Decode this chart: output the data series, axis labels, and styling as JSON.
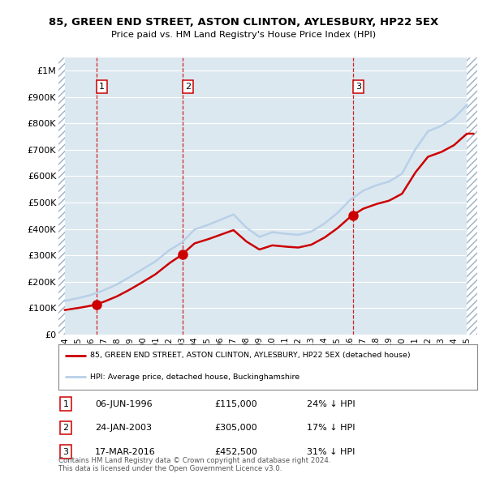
{
  "title1": "85, GREEN END STREET, ASTON CLINTON, AYLESBURY, HP22 5EX",
  "title2": "Price paid vs. HM Land Registry's House Price Index (HPI)",
  "ylim": [
    0,
    1050000
  ],
  "yticks": [
    0,
    100000,
    200000,
    300000,
    400000,
    500000,
    600000,
    700000,
    800000,
    900000,
    1000000
  ],
  "ytick_labels": [
    "£0",
    "£100K",
    "£200K",
    "£300K",
    "£400K",
    "£500K",
    "£600K",
    "£700K",
    "£800K",
    "£900K",
    "£1M"
  ],
  "xlim_start": 1993.5,
  "xlim_end": 2025.8,
  "hpi_color": "#b8d0e8",
  "price_color": "#cc0000",
  "sale_points": [
    {
      "year": 1996.44,
      "price": 115000,
      "label": "1"
    },
    {
      "year": 2003.07,
      "price": 305000,
      "label": "2"
    },
    {
      "year": 2016.21,
      "price": 452500,
      "label": "3"
    }
  ],
  "vline_color": "#cc0000",
  "legend_line1": "85, GREEN END STREET, ASTON CLINTON, AYLESBURY, HP22 5EX (detached house)",
  "legend_line2": "HPI: Average price, detached house, Buckinghamshire",
  "table_rows": [
    {
      "num": "1",
      "date": "06-JUN-1996",
      "price": "£115,000",
      "hpi": "24% ↓ HPI"
    },
    {
      "num": "2",
      "date": "24-JAN-2003",
      "price": "£305,000",
      "hpi": "17% ↓ HPI"
    },
    {
      "num": "3",
      "date": "17-MAR-2016",
      "price": "£452,500",
      "hpi": "31% ↓ HPI"
    }
  ],
  "footer": "Contains HM Land Registry data © Crown copyright and database right 2024.\nThis data is licensed under the Open Government Licence v3.0.",
  "bg_plot_color": "#dce8f0",
  "hpi_years": [
    1994,
    1995,
    1996,
    1997,
    1998,
    1999,
    2000,
    2001,
    2002,
    2003,
    2004,
    2005,
    2006,
    2007,
    2008,
    2009,
    2010,
    2011,
    2012,
    2013,
    2014,
    2015,
    2016,
    2017,
    2018,
    2019,
    2020,
    2021,
    2022,
    2023,
    2024,
    2025
  ],
  "hpi_vals": [
    128000,
    138000,
    150000,
    168000,
    190000,
    218000,
    248000,
    278000,
    318000,
    348000,
    398000,
    415000,
    435000,
    455000,
    405000,
    370000,
    388000,
    382000,
    378000,
    390000,
    420000,
    460000,
    510000,
    545000,
    565000,
    580000,
    610000,
    700000,
    770000,
    790000,
    820000,
    870000
  ]
}
